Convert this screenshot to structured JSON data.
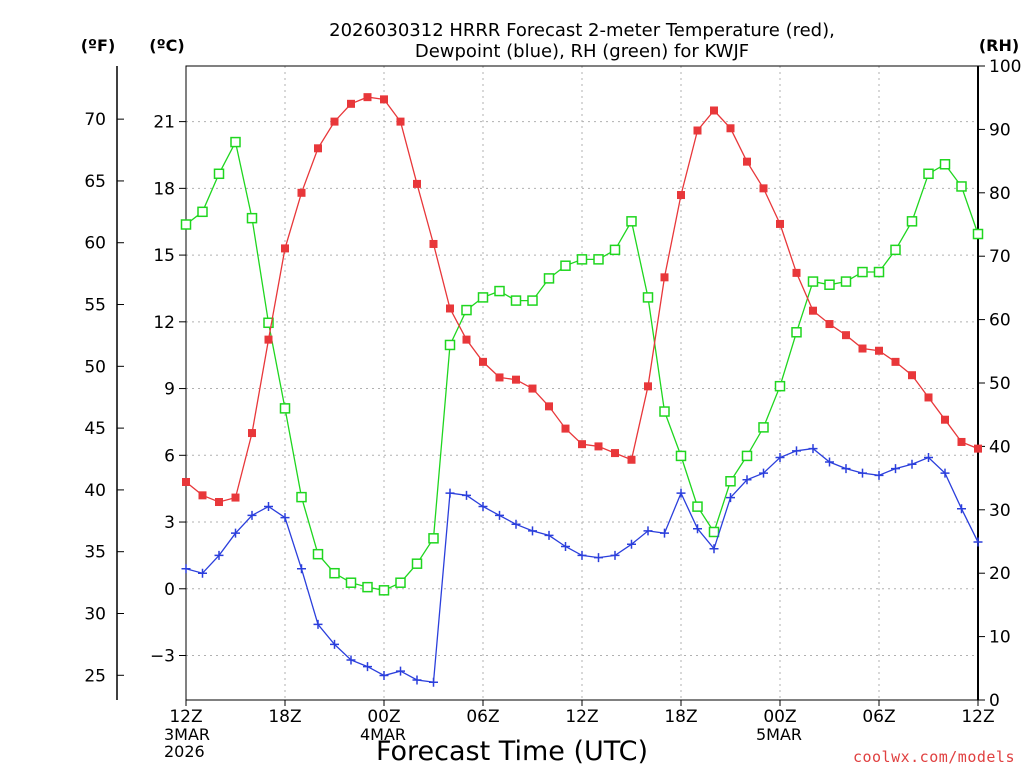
{
  "chart_data": {
    "type": "line",
    "title_line1": "2026030312 HRRR Forecast 2-meter Temperature (red),",
    "title_line2": "Dewpoint (blue), RH (green) for KWJF",
    "xlabel": "Forecast Time (UTC)",
    "units": {
      "fahrenheit": "(ºF)",
      "celsius": "(ºC)",
      "rh": "(RH)"
    },
    "credit": "coolwx.com/models",
    "x_hours": [
      0,
      1,
      2,
      3,
      4,
      5,
      6,
      7,
      8,
      9,
      10,
      11,
      12,
      13,
      14,
      15,
      16,
      17,
      18,
      19,
      20,
      21,
      22,
      23,
      24,
      25,
      26,
      27,
      28,
      29,
      30,
      31,
      32,
      33,
      34,
      35,
      36,
      37,
      38,
      39,
      40,
      41,
      42,
      43,
      44,
      45,
      46,
      47,
      48
    ],
    "x_ticks": [
      {
        "hour": 0,
        "label": "12Z",
        "sub": [
          "3MAR",
          "2026"
        ]
      },
      {
        "hour": 6,
        "label": "18Z",
        "sub": []
      },
      {
        "hour": 12,
        "label": "00Z",
        "sub": [
          "4MAR"
        ]
      },
      {
        "hour": 18,
        "label": "06Z",
        "sub": []
      },
      {
        "hour": 24,
        "label": "12Z",
        "sub": []
      },
      {
        "hour": 30,
        "label": "18Z",
        "sub": []
      },
      {
        "hour": 36,
        "label": "00Z",
        "sub": [
          "5MAR"
        ]
      },
      {
        "hour": 42,
        "label": "06Z",
        "sub": []
      },
      {
        "hour": 48,
        "label": "12Z",
        "sub": []
      }
    ],
    "y_celsius": {
      "range": [
        -5,
        23.5
      ],
      "ticks": [
        -3,
        0,
        3,
        6,
        9,
        12,
        15,
        18,
        21
      ],
      "tick_labels": [
        "−3",
        "0",
        "3",
        "6",
        "9",
        "12",
        "15",
        "18",
        "21"
      ]
    },
    "y_fahrenheit": {
      "ticks": [
        25,
        30,
        35,
        40,
        45,
        50,
        55,
        60,
        65,
        70
      ]
    },
    "y_rh": {
      "range": [
        0,
        100
      ],
      "ticks": [
        0,
        10,
        20,
        30,
        40,
        50,
        60,
        70,
        80,
        90,
        100
      ]
    },
    "series": [
      {
        "axis": "celsius",
        "marker": "filled-square",
        "color": "#e8373a",
        "values": [
          4.8,
          4.2,
          3.9,
          4.1,
          7.0,
          11.2,
          15.3,
          17.8,
          19.8,
          21.0,
          21.8,
          22.1,
          22.0,
          21.0,
          18.2,
          15.5,
          12.6,
          11.2,
          10.2,
          9.5,
          9.4,
          9.0,
          8.2,
          7.2,
          6.5,
          6.4,
          6.1,
          5.8,
          9.1,
          14.0,
          17.7,
          20.6,
          21.5,
          20.7,
          19.2,
          18.0,
          16.4,
          14.2,
          12.5,
          11.9,
          11.4,
          10.8,
          10.7,
          10.2,
          9.6,
          8.6,
          7.6,
          6.6,
          6.3
        ]
      },
      {
        "axis": "celsius",
        "marker": "plus",
        "color": "#2b3fdc",
        "values": [
          0.9,
          0.7,
          1.5,
          2.5,
          3.3,
          3.7,
          3.2,
          0.9,
          -1.6,
          -2.5,
          -3.2,
          -3.5,
          -3.9,
          -3.7,
          -4.1,
          -4.2,
          4.3,
          4.2,
          3.7,
          3.3,
          2.9,
          2.6,
          2.4,
          1.9,
          1.5,
          1.4,
          1.5,
          2.0,
          2.6,
          2.5,
          4.3,
          2.7,
          1.8,
          4.1,
          4.9,
          5.2,
          5.9,
          6.2,
          6.3,
          5.7,
          5.4,
          5.2,
          5.1,
          5.4,
          5.6,
          5.9,
          5.2,
          3.6,
          2.1
        ]
      },
      {
        "axis": "rh",
        "marker": "open-square",
        "color": "#1fd61f",
        "values": [
          75.0,
          77.0,
          83.0,
          88.0,
          76.0,
          59.5,
          46.0,
          32.0,
          23.0,
          20.0,
          18.5,
          17.8,
          17.3,
          18.5,
          21.5,
          25.5,
          56.0,
          61.5,
          63.5,
          64.5,
          63.0,
          63.0,
          66.5,
          68.5,
          69.5,
          69.5,
          71.0,
          75.5,
          63.5,
          45.5,
          38.5,
          30.5,
          26.5,
          34.5,
          38.5,
          43.0,
          49.5,
          58.0,
          66.0,
          65.5,
          66.0,
          67.5,
          67.5,
          71.0,
          75.5,
          83.0,
          84.5,
          81.0,
          73.5
        ]
      }
    ]
  }
}
